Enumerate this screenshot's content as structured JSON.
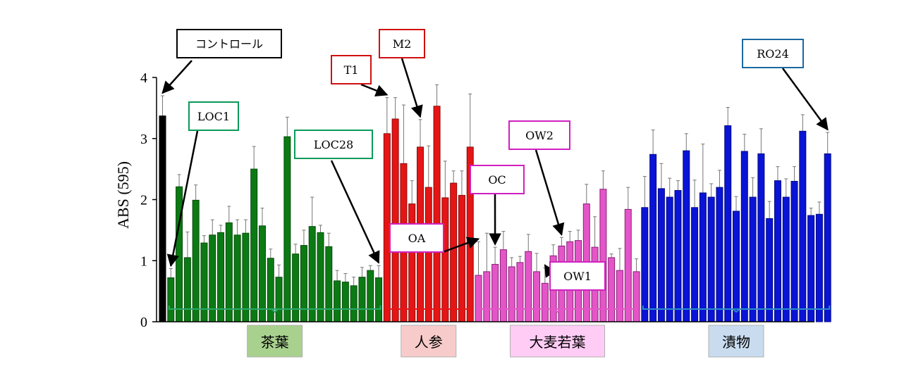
{
  "chart_data": {
    "type": "bar",
    "ylabel": "ABS (595)",
    "ylim": [
      0,
      4
    ],
    "yticks": [
      0,
      1,
      2,
      3,
      4
    ],
    "grid": false,
    "control": {
      "name": "コントロール",
      "value": 3.37,
      "error": 0.33,
      "color": "#000000"
    },
    "groups": [
      {
        "name": "茶葉",
        "color": "#0c7a14",
        "stroke": "#064d0a",
        "label_bg": "#a9d18e",
        "bracket_color": "#2aa86a",
        "values": [
          0.72,
          2.21,
          1.05,
          1.99,
          1.29,
          1.42,
          1.46,
          1.62,
          1.42,
          1.45,
          2.5,
          1.57,
          1.04,
          0.73,
          3.03,
          1.11,
          1.25,
          1.56,
          1.46,
          1.23,
          0.67,
          0.65,
          0.59,
          0.73,
          0.84,
          0.72
        ],
        "errors": [
          0.15,
          0.2,
          0.42,
          0.25,
          0.12,
          0.25,
          0.12,
          0.27,
          0.25,
          0.22,
          0.37,
          0.29,
          0.15,
          0.2,
          0.32,
          0.16,
          0.25,
          0.48,
          0.12,
          0.22,
          0.17,
          0.14,
          0.14,
          0.16,
          0.08,
          0.2
        ]
      },
      {
        "name": "人参",
        "color": "#e61515",
        "stroke": "#8a0a0a",
        "label_bg": "#f8cbcb",
        "bracket_color": "#e61515",
        "values": [
          3.08,
          3.32,
          2.59,
          1.93,
          2.86,
          2.2,
          3.53,
          2.03,
          2.27,
          2.07,
          2.86
        ],
        "errors": [
          0.59,
          0.35,
          0.96,
          0.38,
          0.45,
          0.68,
          0.35,
          0.6,
          0.2,
          0.4,
          0.87
        ]
      },
      {
        "name": "大麦若葉",
        "color": "#e455c8",
        "stroke": "#8a1f78",
        "label_bg": "#ffccf5",
        "bracket_color": "#e455c8",
        "values": [
          0.76,
          0.82,
          0.94,
          1.18,
          0.9,
          0.97,
          1.15,
          0.82,
          0.63,
          1.08,
          1.24,
          1.31,
          1.33,
          1.93,
          1.22,
          2.17,
          1.05,
          0.84,
          1.84,
          0.82
        ],
        "errors": [
          0.55,
          0.63,
          0.28,
          0.3,
          0.15,
          0.1,
          0.28,
          0.3,
          0.25,
          0.18,
          0.14,
          0.17,
          0.17,
          0.32,
          0.5,
          0.3,
          0.06,
          0.36,
          0.36,
          0.21
        ]
      },
      {
        "name": "漬物",
        "color": "#0a14d6",
        "stroke": "#050a80",
        "label_bg": "#c9dcef",
        "bracket_color": "#2a8cc7",
        "values": [
          1.87,
          2.74,
          2.18,
          2.04,
          2.15,
          2.8,
          1.87,
          2.11,
          2.04,
          2.2,
          3.21,
          1.81,
          2.79,
          2.04,
          2.75,
          1.69,
          2.31,
          2.04,
          2.3,
          3.12,
          1.74,
          1.76,
          2.75
        ],
        "errors": [
          0.51,
          0.4,
          0.41,
          0.31,
          0.16,
          0.28,
          0.45,
          0.8,
          0.22,
          0.28,
          0.3,
          0.24,
          0.28,
          0.32,
          0.41,
          0.28,
          0.23,
          0.3,
          0.24,
          0.27,
          0.12,
          0.2,
          0.35
        ]
      }
    ],
    "annotations": [
      {
        "text": "コントロール",
        "color": "#000000",
        "target": {
          "group": "control",
          "index": 0
        }
      },
      {
        "text": "LOC1",
        "color": "#0a9a5a",
        "target": {
          "group": 0,
          "index": 0
        }
      },
      {
        "text": "LOC28",
        "color": "#0a9a5a",
        "target": {
          "group": 0,
          "index": 25
        }
      },
      {
        "text": "T1",
        "color": "#d01010",
        "target": {
          "group": 1,
          "index": 0
        }
      },
      {
        "text": "M2",
        "color": "#d01010",
        "target": {
          "group": 1,
          "index": 4
        }
      },
      {
        "text": "OA",
        "color": "#d020c0",
        "target": {
          "group": 2,
          "index": 0
        }
      },
      {
        "text": "OC",
        "color": "#d020c0",
        "target": {
          "group": 2,
          "index": 2
        }
      },
      {
        "text": "OW2",
        "color": "#d020c0",
        "target": {
          "group": 2,
          "index": 10
        }
      },
      {
        "text": "OW1",
        "color": "#d020c0",
        "target": {
          "group": 2,
          "index": 8
        }
      },
      {
        "text": "RO24",
        "color": "#1a6aa0",
        "target": {
          "group": 3,
          "index": 22
        }
      }
    ]
  }
}
